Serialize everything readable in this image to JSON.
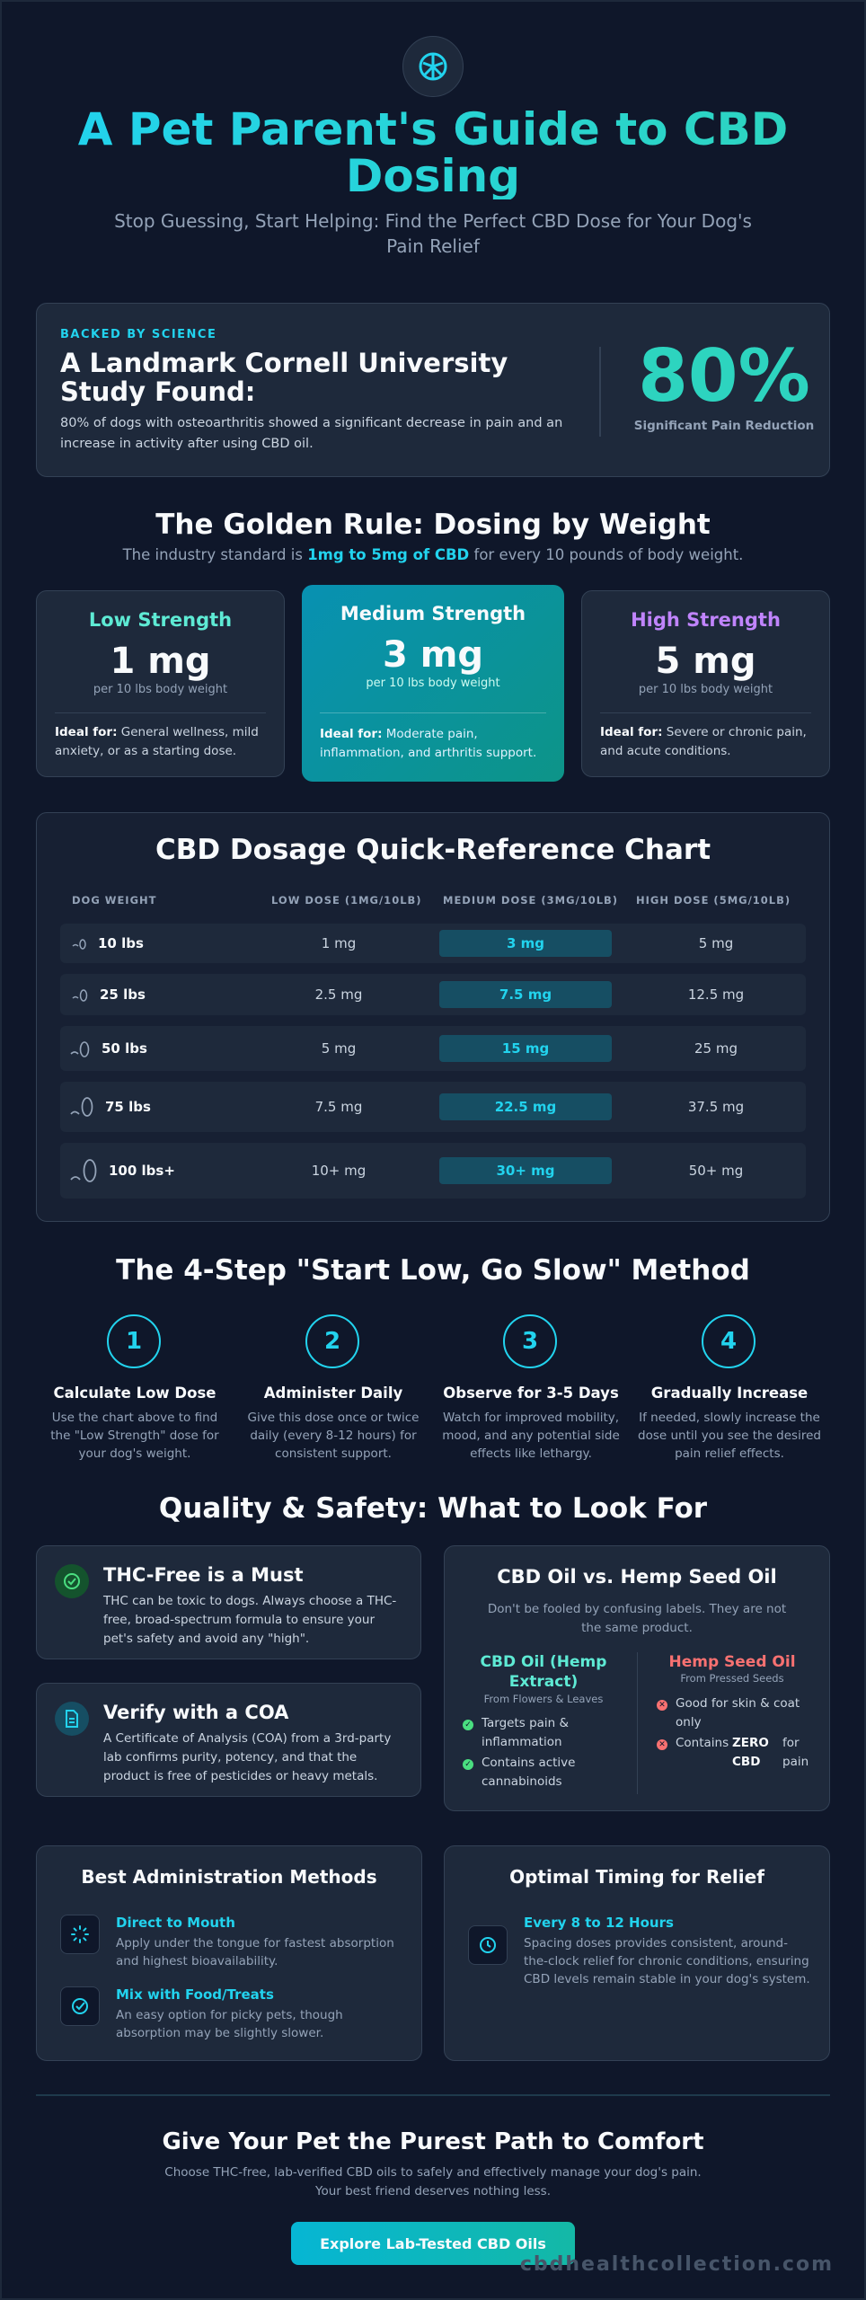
{
  "header": {
    "logo_icon": "cbd-leaf-icon",
    "title": "A Pet Parent's Guide to CBD Dosing",
    "subtitle": "Stop Guessing, Start Helping: Find the Perfect CBD Dose for Your Dog's Pain Relief"
  },
  "study": {
    "eyebrow": "BACKED BY SCIENCE",
    "title": "A Landmark Cornell University Study Found:",
    "text": "80% of dogs with osteoarthritis showed a significant decrease in pain and an increase in activity after using CBD oil.",
    "stat": "80%",
    "stat_label": "Significant Pain Reduction"
  },
  "golden_rule": {
    "title": "The Golden Rule: Dosing by Weight",
    "text_before": "The industry standard is ",
    "text_highlight": "1mg to 5mg of CBD",
    "text_after": " for every 10 pounds of body weight.",
    "strengths": [
      {
        "title": "Low Strength",
        "value": "1 mg",
        "unit": "per 10 lbs body weight",
        "ideal_label": "Ideal for:",
        "ideal": " General wellness, mild anxiety, or as a starting dose.",
        "color": "#5eead4"
      },
      {
        "title": "Medium Strength",
        "value": "3 mg",
        "unit": "per 10 lbs body weight",
        "ideal_label": "Ideal for:",
        "ideal": " Moderate pain, inflammation, and arthritis support.",
        "color": "#f8fafc"
      },
      {
        "title": "High Strength",
        "value": "5 mg",
        "unit": "per 10 lbs body weight",
        "ideal_label": "Ideal for:",
        "ideal": " Severe or chronic pain, and acute conditions.",
        "color": "#c084fc"
      }
    ]
  },
  "chart": {
    "title": "CBD Dosage Quick-Reference Chart",
    "headers": [
      "DOG WEIGHT",
      "LOW DOSE (1MG/10LB)",
      "MEDIUM DOSE (3MG/10LB)",
      "HIGH DOSE (5MG/10LB)"
    ],
    "rows": [
      {
        "weight": "10 lbs",
        "low": "1 mg",
        "medium": "3 mg",
        "high": "5 mg"
      },
      {
        "weight": "25 lbs",
        "low": "2.5 mg",
        "medium": "7.5 mg",
        "high": "12.5 mg"
      },
      {
        "weight": "50 lbs",
        "low": "5 mg",
        "medium": "15 mg",
        "high": "25 mg"
      },
      {
        "weight": "75 lbs",
        "low": "7.5 mg",
        "medium": "22.5 mg",
        "high": "37.5 mg"
      },
      {
        "weight": "100 lbs+",
        "low": "10+ mg",
        "medium": "30+ mg",
        "high": "50+ mg"
      }
    ]
  },
  "method": {
    "title": "The 4-Step \"Start Low, Go Slow\" Method",
    "steps": [
      {
        "num": "1",
        "title": "Calculate Low Dose",
        "desc": "Use the chart above to find the \"Low Strength\" dose for your dog's weight."
      },
      {
        "num": "2",
        "title": "Administer Daily",
        "desc": "Give this dose once or twice daily (every 8-12 hours) for consistent support."
      },
      {
        "num": "3",
        "title": "Observe for 3-5 Days",
        "desc": "Watch for improved mobility, mood, and any potential side effects like lethargy."
      },
      {
        "num": "4",
        "title": "Gradually Increase",
        "desc": "If needed, slowly increase the dose until you see the desired pain relief effects."
      }
    ]
  },
  "quality": {
    "title": "Quality & Safety: What to Look For",
    "thc": {
      "title": "THC-Free is a Must",
      "desc": "THC can be toxic to dogs. Always choose a THC-free, broad-spectrum formula to ensure your pet's safety and avoid any \"high\"."
    },
    "coa": {
      "title": "Verify with a COA",
      "desc": "A Certificate of Analysis (COA) from a 3rd-party lab confirms purity, potency, and that the product is free of pesticides or heavy metals."
    },
    "vs": {
      "title": "CBD Oil vs. Hemp Seed Oil",
      "subtitle": "Don't be fooled by confusing labels. They are not the same product.",
      "cbd_title": "CBD Oil (Hemp Extract)",
      "cbd_source": "From Flowers & Leaves",
      "cbd_points": [
        "Targets pain & inflammation",
        "Contains active cannabinoids"
      ],
      "hemp_title": "Hemp Seed Oil",
      "hemp_source": "From Pressed Seeds",
      "hemp_point": "Good for skin & coat only",
      "hemp_point2_a": "Contains",
      "hemp_point2_b": "ZERO CBD",
      "hemp_point2_c": "for pain"
    }
  },
  "admin": {
    "title": "Best Administration Methods",
    "items": [
      {
        "title": "Direct to Mouth",
        "desc": "Apply under the tongue for fastest absorption and highest bioavailability."
      },
      {
        "title": "Mix with Food/Treats",
        "desc": "An easy option for picky pets, though absorption may be slightly slower."
      }
    ]
  },
  "timing": {
    "title": "Optimal Timing for Relief",
    "item_title": "Every 8 to 12 Hours",
    "item_desc": "Spacing doses provides consistent, around-the-clock relief for chronic conditions, ensuring CBD levels remain stable in your dog's system."
  },
  "footer": {
    "title": "Give Your Pet the Purest Path to Comfort",
    "desc": "Choose THC-free, lab-verified CBD oils to safely and effectively manage your dog's pain. Your best friend deserves nothing less.",
    "button": "Explore Lab-Tested CBD Oils",
    "site": "cbdhealthcollection.com"
  }
}
